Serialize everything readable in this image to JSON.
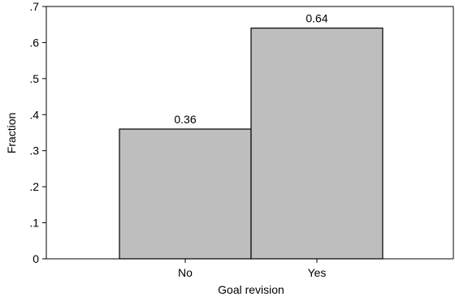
{
  "chart_data": {
    "type": "bar",
    "categories": [
      "No",
      "Yes"
    ],
    "values": [
      0.36,
      0.64
    ],
    "data_labels": [
      "0.36",
      "0.64"
    ],
    "xlabel": "Goal revision",
    "ylabel": "Fraction",
    "ylim": [
      0,
      0.7
    ],
    "yticks": [
      0,
      0.1,
      0.2,
      0.3,
      0.4,
      0.5,
      0.6,
      0.7
    ],
    "ytick_labels": [
      "0",
      ".1",
      ".2",
      ".3",
      ".4",
      ".5",
      ".6",
      ".7"
    ],
    "grid": false,
    "legend": "none",
    "colors": {
      "bar_fill": "#bebebe",
      "bar_stroke": "#000000",
      "axis": "#000000"
    }
  }
}
